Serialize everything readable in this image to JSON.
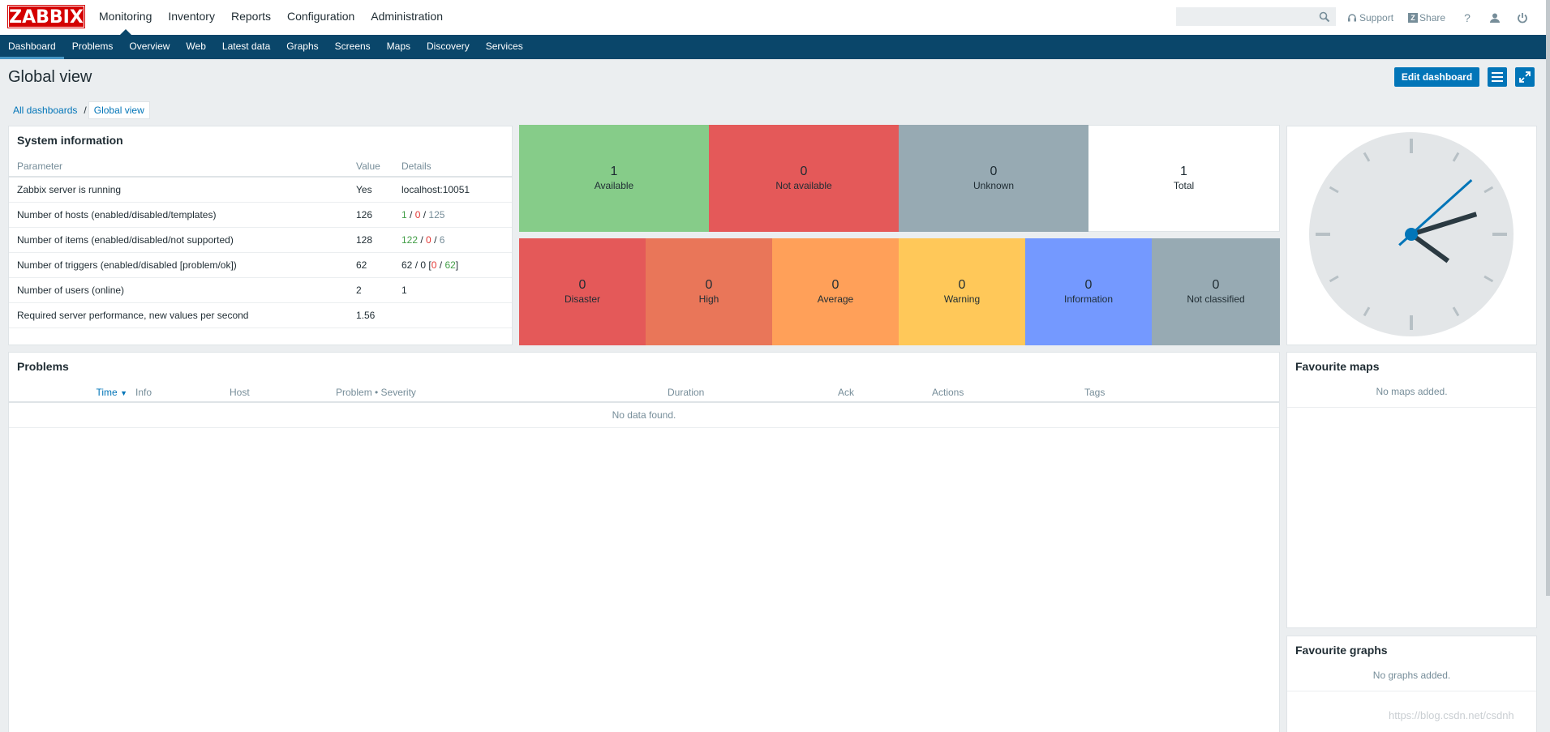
{
  "logo": {
    "text": "ZABBIX"
  },
  "main_menu": [
    {
      "label": "Monitoring",
      "selected": true
    },
    {
      "label": "Inventory"
    },
    {
      "label": "Reports"
    },
    {
      "label": "Configuration"
    },
    {
      "label": "Administration"
    }
  ],
  "search": {
    "value": "",
    "placeholder": ""
  },
  "top_links": {
    "support": "Support",
    "share": "Share",
    "share_badge": "Z",
    "help": "?"
  },
  "sub_menu": [
    {
      "label": "Dashboard",
      "selected": true
    },
    {
      "label": "Problems"
    },
    {
      "label": "Overview"
    },
    {
      "label": "Web"
    },
    {
      "label": "Latest data"
    },
    {
      "label": "Graphs"
    },
    {
      "label": "Screens"
    },
    {
      "label": "Maps"
    },
    {
      "label": "Discovery"
    },
    {
      "label": "Services"
    }
  ],
  "page": {
    "title": "Global view",
    "edit_button": "Edit dashboard",
    "breadcrumbs": [
      "All dashboards",
      "Global view"
    ],
    "breadcrumb_separator": "/"
  },
  "system_info": {
    "title": "System information",
    "headers": [
      "Parameter",
      "Value",
      "Details"
    ],
    "rows": [
      {
        "param": "Zabbix server is running",
        "value": "Yes",
        "details": "localhost:10051"
      },
      {
        "param": "Number of hosts (enabled/disabled/templates)",
        "value": "126",
        "d1": "1",
        "d2": "0",
        "d3": "125"
      },
      {
        "param": "Number of items (enabled/disabled/not supported)",
        "value": "128",
        "d1": "122",
        "d2": "0",
        "d3": "6"
      },
      {
        "param": "Number of triggers (enabled/disabled [problem/ok])",
        "value": "62",
        "d1": "62",
        "d2": "0",
        "d3": "0",
        "d4": "62"
      },
      {
        "param": "Number of users (online)",
        "value": "2",
        "details": "1"
      },
      {
        "param": "Required server performance, new values per second",
        "value": "1.56",
        "details": ""
      }
    ]
  },
  "host_availability": [
    {
      "count": "1",
      "label": "Available",
      "color": "#86cc89"
    },
    {
      "count": "0",
      "label": "Not available",
      "color": "#e45959"
    },
    {
      "count": "0",
      "label": "Unknown",
      "color": "#97aab3"
    },
    {
      "count": "1",
      "label": "Total",
      "color": "#ffffff"
    }
  ],
  "problems_by_severity": [
    {
      "count": "0",
      "label": "Disaster",
      "color": "#e45959"
    },
    {
      "count": "0",
      "label": "High",
      "color": "#e97659"
    },
    {
      "count": "0",
      "label": "Average",
      "color": "#ffa059"
    },
    {
      "count": "0",
      "label": "Warning",
      "color": "#ffc859"
    },
    {
      "count": "0",
      "label": "Information",
      "color": "#7499ff"
    },
    {
      "count": "0",
      "label": "Not classified",
      "color": "#97aab3"
    }
  ],
  "clock": {
    "hour": 4,
    "minute": 12,
    "second": 8
  },
  "problems": {
    "title": "Problems",
    "headers": [
      "Time",
      "Info",
      "Host",
      "Problem • Severity",
      "Duration",
      "Ack",
      "Actions",
      "Tags"
    ],
    "sort_arrow": "▼",
    "empty": "No data found."
  },
  "fav_maps": {
    "title": "Favourite maps",
    "empty": "No maps added."
  },
  "fav_graphs": {
    "title": "Favourite graphs",
    "empty": "No graphs added."
  },
  "watermark": "https://blog.csdn.net/csdnh",
  "colors": {
    "accent": "#0275b8",
    "nav": "#0a466a",
    "brand": "#d40000",
    "ok": "#429e47",
    "problem": "#e33734"
  }
}
